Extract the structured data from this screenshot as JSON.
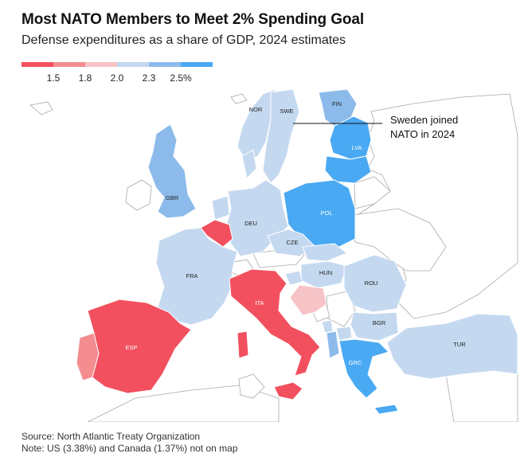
{
  "title": "Most NATO Members to Meet 2% Spending Goal",
  "subtitle": "Defense expenditures as a share of GDP, 2024 estimates",
  "legend": {
    "colors": [
      "#f2505f",
      "#f48d90",
      "#f6c3c6",
      "#c4d9f0",
      "#8cbbeb",
      "#4aa9f3"
    ],
    "ticks": [
      "1.5",
      "1.8",
      "2.0",
      "2.3",
      "2.5%"
    ]
  },
  "annotation": {
    "line1": "Sweden joined",
    "line2": "NATO in 2024"
  },
  "countries": {
    "NOR": {
      "label": "NOR",
      "color": "#c4d9f0"
    },
    "SWE": {
      "label": "SWE",
      "color": "#c4d9f0"
    },
    "FIN": {
      "label": "FIN",
      "color": "#8cbbeb"
    },
    "GBR": {
      "label": "GBR",
      "color": "#8cbbeb"
    },
    "LVA": {
      "label": "LVA",
      "color": "#4aa9f3"
    },
    "POL": {
      "label": "POL",
      "color": "#4aa9f3"
    },
    "DEU": {
      "label": "DEU",
      "color": "#c4d9f0"
    },
    "CZE": {
      "label": "CZE",
      "color": "#c4d9f0"
    },
    "FRA": {
      "label": "FRA",
      "color": "#c4d9f0"
    },
    "HUN": {
      "label": "HUN",
      "color": "#c4d9f0"
    },
    "ROU": {
      "label": "ROU",
      "color": "#c4d9f0"
    },
    "ITA": {
      "label": "ITA",
      "color": "#f2505f"
    },
    "BGR": {
      "label": "BGR",
      "color": "#c4d9f0"
    },
    "ESP": {
      "label": "ESP",
      "color": "#f2505f"
    },
    "TUR": {
      "label": "TUR",
      "color": "#c4d9f0"
    },
    "GRC": {
      "label": "GRC",
      "color": "#4aa9f3"
    }
  },
  "footer": {
    "source": "Source: North Atlantic Treaty Organization",
    "note": "Note: US (3.38%) and Canada (1.37%) not on map"
  }
}
